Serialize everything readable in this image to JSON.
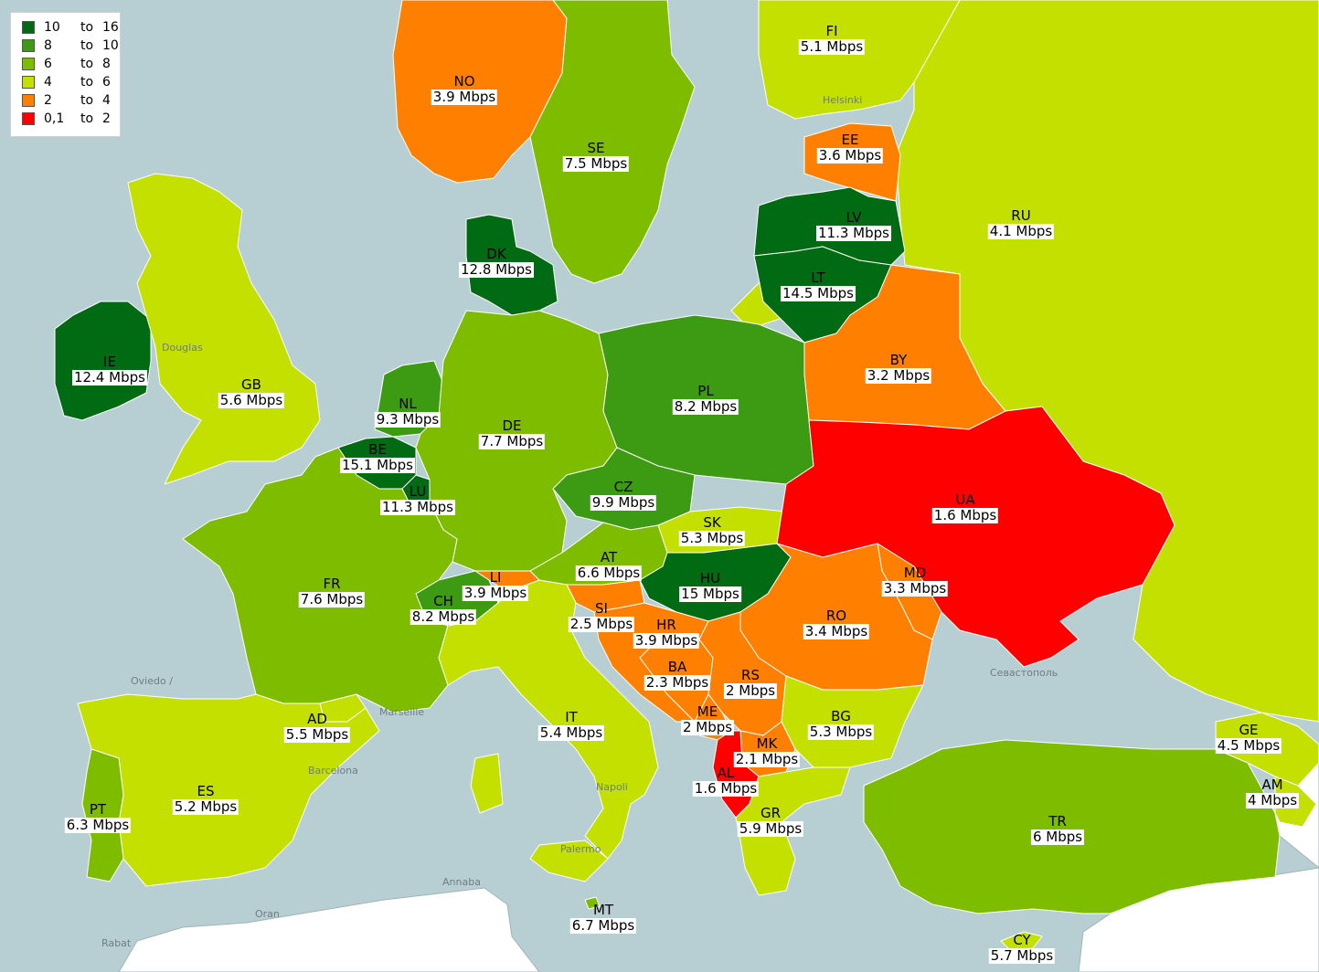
{
  "legend": {
    "items": [
      {
        "min": "10",
        "to": "to",
        "max": "16",
        "color": "#006b12"
      },
      {
        "min": "8",
        "to": "to",
        "max": "10",
        "color": "#3d9a13"
      },
      {
        "min": "6",
        "to": "to",
        "max": "8",
        "color": "#7ebc00"
      },
      {
        "min": "4",
        "to": "to",
        "max": "6",
        "color": "#c3e000"
      },
      {
        "min": "2",
        "to": "to",
        "max": "4",
        "color": "#ff8000"
      },
      {
        "min": "0,1",
        "to": "to",
        "max": "2",
        "color": "#ff0000"
      }
    ]
  },
  "colors": {
    "sea": "#b7cfd3",
    "outside": "#ffffff",
    "bin_10_16": "#006b12",
    "bin_8_10": "#3d9a13",
    "bin_6_8": "#7ebc00",
    "bin_4_6": "#c3e000",
    "bin_2_4": "#ff8000",
    "bin_01_2": "#ff0000"
  },
  "countries": [
    {
      "code": "FI",
      "speed": "5.1 Mbps",
      "value": 5.1
    },
    {
      "code": "NO",
      "speed": "3.9 Mbps",
      "value": 3.9
    },
    {
      "code": "SE",
      "speed": "7.5 Mbps",
      "value": 7.5
    },
    {
      "code": "EE",
      "speed": "3.6 Mbps",
      "value": 3.6
    },
    {
      "code": "RU",
      "speed": "4.1 Mbps",
      "value": 4.1
    },
    {
      "code": "LV",
      "speed": "11.3 Mbps",
      "value": 11.3
    },
    {
      "code": "DK",
      "speed": "12.8 Mbps",
      "value": 12.8
    },
    {
      "code": "LT",
      "speed": "14.5 Mbps",
      "value": 14.5
    },
    {
      "code": "IE",
      "speed": "12.4 Mbps",
      "value": 12.4
    },
    {
      "code": "BY",
      "speed": "3.2 Mbps",
      "value": 3.2
    },
    {
      "code": "GB",
      "speed": "5.6 Mbps",
      "value": 5.6
    },
    {
      "code": "PL",
      "speed": "8.2 Mbps",
      "value": 8.2
    },
    {
      "code": "NL",
      "speed": "9.3 Mbps",
      "value": 9.3
    },
    {
      "code": "DE",
      "speed": "7.7 Mbps",
      "value": 7.7
    },
    {
      "code": "BE",
      "speed": "15.1 Mbps",
      "value": 15.1
    },
    {
      "code": "LU",
      "speed": "11.3 Mbps",
      "value": 11.3
    },
    {
      "code": "CZ",
      "speed": "9.9 Mbps",
      "value": 9.9
    },
    {
      "code": "UA",
      "speed": "1.6 Mbps",
      "value": 1.6
    },
    {
      "code": "SK",
      "speed": "5.3 Mbps",
      "value": 5.3
    },
    {
      "code": "AT",
      "speed": "6.6 Mbps",
      "value": 6.6
    },
    {
      "code": "FR",
      "speed": "7.6 Mbps",
      "value": 7.6
    },
    {
      "code": "LI",
      "speed": "3.9 Mbps",
      "value": 3.9
    },
    {
      "code": "HU",
      "speed": "15 Mbps",
      "value": 15
    },
    {
      "code": "MD",
      "speed": "3.3 Mbps",
      "value": 3.3
    },
    {
      "code": "CH",
      "speed": "8.2 Mbps",
      "value": 8.2
    },
    {
      "code": "SI",
      "speed": "2.5 Mbps",
      "value": 2.5
    },
    {
      "code": "RO",
      "speed": "3.4 Mbps",
      "value": 3.4
    },
    {
      "code": "HR",
      "speed": "3.9 Mbps",
      "value": 3.9
    },
    {
      "code": "BA",
      "speed": "2.3 Mbps",
      "value": 2.3
    },
    {
      "code": "RS",
      "speed": "2 Mbps",
      "value": 2
    },
    {
      "code": "AD",
      "speed": "5.5 Mbps",
      "value": 5.5
    },
    {
      "code": "IT",
      "speed": "5.4 Mbps",
      "value": 5.4
    },
    {
      "code": "ME",
      "speed": "2 Mbps",
      "value": 2
    },
    {
      "code": "BG",
      "speed": "5.3 Mbps",
      "value": 5.3
    },
    {
      "code": "GE",
      "speed": "4.5 Mbps",
      "value": 4.5
    },
    {
      "code": "MK",
      "speed": "2.1 Mbps",
      "value": 2.1
    },
    {
      "code": "AL",
      "speed": "1.6 Mbps",
      "value": 1.6
    },
    {
      "code": "ES",
      "speed": "5.2 Mbps",
      "value": 5.2
    },
    {
      "code": "AM",
      "speed": "4 Mbps",
      "value": 4
    },
    {
      "code": "PT",
      "speed": "6.3 Mbps",
      "value": 6.3
    },
    {
      "code": "GR",
      "speed": "5.9 Mbps",
      "value": 5.9
    },
    {
      "code": "TR",
      "speed": "6 Mbps",
      "value": 6
    },
    {
      "code": "MT",
      "speed": "6.7 Mbps",
      "value": 6.7
    },
    {
      "code": "CY",
      "speed": "5.7 Mbps",
      "value": 5.7
    }
  ],
  "base_map_labels": [
    "Helsinki",
    "Douglas",
    "Oviedo /",
    "Marseille",
    "Barcelona",
    "Palermo",
    "Napoli",
    "Annaba",
    "Oran",
    "Rabat",
    "Севастополь"
  ]
}
